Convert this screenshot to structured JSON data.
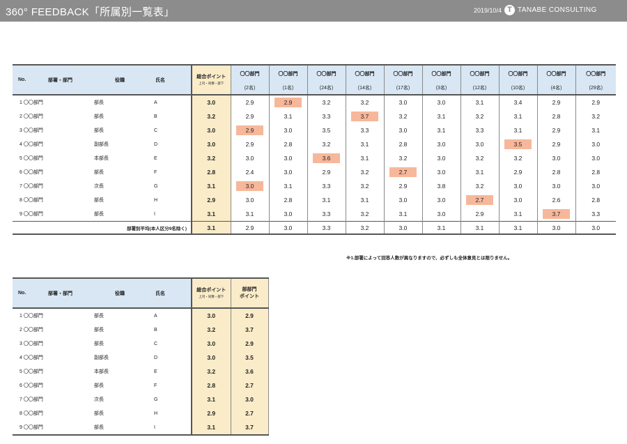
{
  "header": {
    "title": "360° FEEDBACK「所属別一覧表」",
    "date": "2019/10/4",
    "logo_mark": "T",
    "logo_text": "TANABE CONSULTING"
  },
  "table1": {
    "col_no": "No.",
    "col_dept": "部署・部門",
    "col_role": "役職",
    "col_name": "氏名",
    "score_title": "総合ポイント",
    "score_sub": "上司・同僚・部下",
    "depts": [
      {
        "name": "〇〇部門",
        "count": "(2名)"
      },
      {
        "name": "〇〇部門",
        "count": "(1名)"
      },
      {
        "name": "〇〇部門",
        "count": "(24名)"
      },
      {
        "name": "〇〇部門",
        "count": "(14名)"
      },
      {
        "name": "〇〇部門",
        "count": "(17名)"
      },
      {
        "name": "〇〇部門",
        "count": "(3名)"
      },
      {
        "name": "〇〇部門",
        "count": "(12名)"
      },
      {
        "name": "〇〇部門",
        "count": "(10名)"
      },
      {
        "name": "〇〇部門",
        "count": "(4名)"
      },
      {
        "name": "〇〇部門",
        "count": "(29名)"
      }
    ],
    "rows": [
      {
        "no": "1",
        "dept": "〇〇部門",
        "role": "部長",
        "name": "A",
        "score": "3.0",
        "values": [
          "2.9",
          "2.9",
          "3.2",
          "3.2",
          "3.0",
          "3.0",
          "3.1",
          "3.4",
          "2.9",
          "2.9"
        ],
        "hl": 1
      },
      {
        "no": "2",
        "dept": "〇〇部門",
        "role": "部長",
        "name": "B",
        "score": "3.2",
        "values": [
          "2.9",
          "3.1",
          "3.3",
          "3.7",
          "3.2",
          "3.1",
          "3.2",
          "3.1",
          "2.8",
          "3.2"
        ],
        "hl": 3
      },
      {
        "no": "3",
        "dept": "〇〇部門",
        "role": "部長",
        "name": "C",
        "score": "3.0",
        "values": [
          "2.9",
          "3.0",
          "3.5",
          "3.3",
          "3.0",
          "3.1",
          "3.3",
          "3.1",
          "2.9",
          "3.1"
        ],
        "hl": 0
      },
      {
        "no": "4",
        "dept": "〇〇部門",
        "role": "副部長",
        "name": "D",
        "score": "3.0",
        "values": [
          "2.9",
          "2.8",
          "3.2",
          "3.1",
          "2.8",
          "3.0",
          "3.0",
          "3.5",
          "2.9",
          "3.0"
        ],
        "hl": 7
      },
      {
        "no": "5",
        "dept": "〇〇部門",
        "role": "本部長",
        "name": "E",
        "score": "3.2",
        "values": [
          "3.0",
          "3.0",
          "3.6",
          "3.1",
          "3.2",
          "3.0",
          "3.2",
          "3.2",
          "3.0",
          "3.0"
        ],
        "hl": 2
      },
      {
        "no": "6",
        "dept": "〇〇部門",
        "role": "部長",
        "name": "F",
        "score": "2.8",
        "values": [
          "2.4",
          "3.0",
          "2.9",
          "3.2",
          "2.7",
          "3.0",
          "3.1",
          "2.9",
          "2.8",
          "2.8"
        ],
        "hl": 4
      },
      {
        "no": "7",
        "dept": "〇〇部門",
        "role": "次長",
        "name": "G",
        "score": "3.1",
        "values": [
          "3.0",
          "3.1",
          "3.3",
          "3.2",
          "2.9",
          "3.8",
          "3.2",
          "3.0",
          "3.0",
          "3.0"
        ],
        "hl": 0
      },
      {
        "no": "8",
        "dept": "〇〇部門",
        "role": "部長",
        "name": "H",
        "score": "2.9",
        "values": [
          "3.0",
          "2.8",
          "3.1",
          "3.1",
          "3.0",
          "3.0",
          "2.7",
          "3.0",
          "2.6",
          "2.8"
        ],
        "hl": 6
      },
      {
        "no": "9",
        "dept": "〇〇部門",
        "role": "部長",
        "name": "I",
        "score": "3.1",
        "values": [
          "3.1",
          "3.0",
          "3.3",
          "3.2",
          "3.1",
          "3.0",
          "2.9",
          "3.1",
          "3.7",
          "3.3"
        ],
        "hl": 8
      }
    ],
    "avg_label": "部署別平均(本人区分9名除く)",
    "avg_score": "3.1",
    "avg_values": [
      "2.9",
      "3.0",
      "3.3",
      "3.2",
      "3.0",
      "3.1",
      "3.1",
      "3.1",
      "3.0",
      "3.0"
    ],
    "highlight_color": "#f7b79a"
  },
  "note": "※1.部署によって回答人数が異なりますので、必ずしも全体意見とは限りません。",
  "table2": {
    "col_no": "No.",
    "col_dept": "部署・部門",
    "col_role": "役職",
    "col_name": "氏名",
    "score_title": "総合ポイント",
    "score_sub": "上司・同僚・部下",
    "dept_point_title": "部部門",
    "dept_point_sub": "ポイント",
    "rows": [
      {
        "no": "1",
        "dept": "〇〇部門",
        "role": "部長",
        "name": "A",
        "score": "3.0",
        "dept_point": "2.9"
      },
      {
        "no": "2",
        "dept": "〇〇部門",
        "role": "部長",
        "name": "B",
        "score": "3.2",
        "dept_point": "3.7"
      },
      {
        "no": "3",
        "dept": "〇〇部門",
        "role": "部長",
        "name": "C",
        "score": "3.0",
        "dept_point": "2.9"
      },
      {
        "no": "4",
        "dept": "〇〇部門",
        "role": "副部長",
        "name": "D",
        "score": "3.0",
        "dept_point": "3.5"
      },
      {
        "no": "5",
        "dept": "〇〇部門",
        "role": "本部長",
        "name": "E",
        "score": "3.2",
        "dept_point": "3.6"
      },
      {
        "no": "6",
        "dept": "〇〇部門",
        "role": "部長",
        "name": "F",
        "score": "2.8",
        "dept_point": "2.7"
      },
      {
        "no": "7",
        "dept": "〇〇部門",
        "role": "次長",
        "name": "G",
        "score": "3.1",
        "dept_point": "3.0"
      },
      {
        "no": "8",
        "dept": "〇〇部門",
        "role": "部長",
        "name": "H",
        "score": "2.9",
        "dept_point": "2.7"
      },
      {
        "no": "9",
        "dept": "〇〇部門",
        "role": "部長",
        "name": "I",
        "score": "3.1",
        "dept_point": "3.7"
      }
    ]
  }
}
